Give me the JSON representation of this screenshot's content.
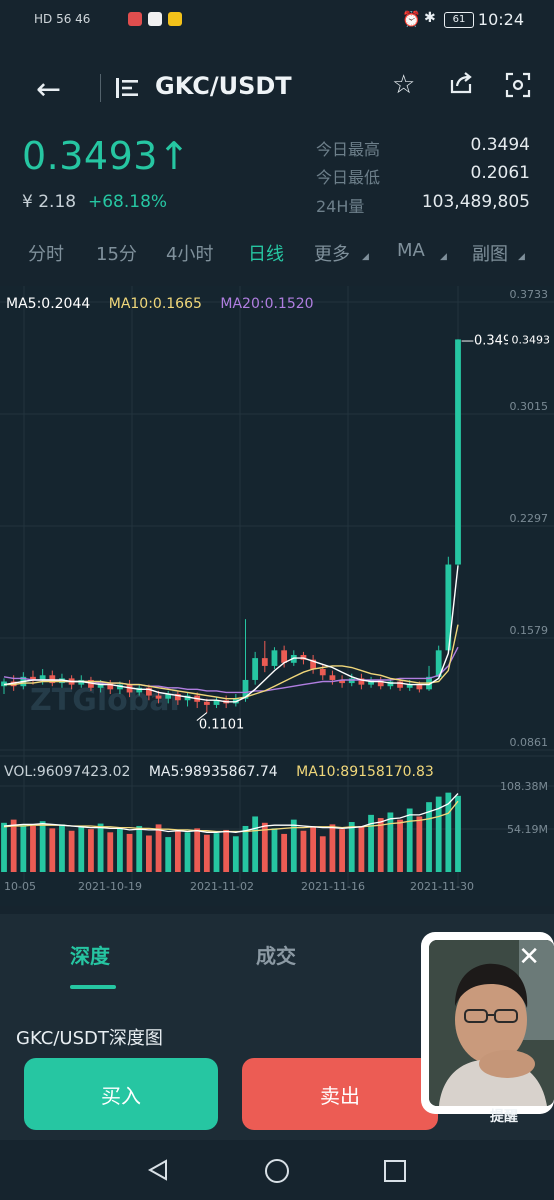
{
  "status_bar": {
    "left": "HD 56 46",
    "battery": "61",
    "time": "10:24"
  },
  "header": {
    "title": "GKC/USDT"
  },
  "price": {
    "last": "0.3493↑",
    "cny": "¥ 2.18",
    "change": "+68.18%"
  },
  "stats": [
    {
      "label": "今日最高",
      "value": "0.3494"
    },
    {
      "label": "今日最低",
      "value": "0.2061"
    },
    {
      "label": "24H量",
      "value": "103,489,805"
    }
  ],
  "tabs": [
    {
      "label": "分时"
    },
    {
      "label": "15分"
    },
    {
      "label": "4小时"
    },
    {
      "label": "日线",
      "active": true
    },
    {
      "label": "更多"
    },
    {
      "label": "MA"
    },
    {
      "label": "副图"
    }
  ],
  "chart_data": {
    "type": "candlestick",
    "ma": [
      {
        "label": "MA5:0.2044",
        "color": "#ffffff"
      },
      {
        "label": "MA10:0.1665",
        "color": "#f0d77a"
      },
      {
        "label": "MA20:0.1520",
        "color": "#b07ee0"
      }
    ],
    "y_ticks": [
      "0.3733",
      "0.3015",
      "0.2297",
      "0.1579",
      "0.0861"
    ],
    "ylim": [
      0.0861,
      0.3733
    ],
    "high_label": "0.3494",
    "last_label": "0.3493",
    "low_label": "0.1101",
    "watermark": "ZTGlobal",
    "candles": [
      [
        0.127,
        0.13,
        0.122,
        0.132
      ],
      [
        0.13,
        0.127,
        0.124,
        0.134
      ],
      [
        0.127,
        0.133,
        0.125,
        0.136
      ],
      [
        0.133,
        0.131,
        0.128,
        0.137
      ],
      [
        0.131,
        0.134,
        0.128,
        0.138
      ],
      [
        0.134,
        0.129,
        0.127,
        0.137
      ],
      [
        0.129,
        0.132,
        0.126,
        0.135
      ],
      [
        0.132,
        0.128,
        0.125,
        0.134
      ],
      [
        0.128,
        0.131,
        0.126,
        0.134
      ],
      [
        0.131,
        0.126,
        0.124,
        0.133
      ],
      [
        0.126,
        0.129,
        0.123,
        0.131
      ],
      [
        0.129,
        0.125,
        0.122,
        0.131
      ],
      [
        0.125,
        0.128,
        0.122,
        0.13
      ],
      [
        0.128,
        0.123,
        0.12,
        0.131
      ],
      [
        0.123,
        0.126,
        0.121,
        0.128
      ],
      [
        0.126,
        0.121,
        0.118,
        0.128
      ],
      [
        0.121,
        0.119,
        0.116,
        0.124
      ],
      [
        0.119,
        0.122,
        0.116,
        0.124
      ],
      [
        0.122,
        0.118,
        0.115,
        0.124
      ],
      [
        0.118,
        0.121,
        0.114,
        0.123
      ],
      [
        0.121,
        0.117,
        0.113,
        0.123
      ],
      [
        0.117,
        0.115,
        0.1101,
        0.119
      ],
      [
        0.115,
        0.118,
        0.113,
        0.12
      ],
      [
        0.118,
        0.116,
        0.113,
        0.121
      ],
      [
        0.116,
        0.119,
        0.114,
        0.122
      ],
      [
        0.119,
        0.131,
        0.117,
        0.17
      ],
      [
        0.131,
        0.145,
        0.128,
        0.149
      ],
      [
        0.145,
        0.14,
        0.136,
        0.156
      ],
      [
        0.14,
        0.15,
        0.138,
        0.152
      ],
      [
        0.15,
        0.142,
        0.139,
        0.153
      ],
      [
        0.142,
        0.147,
        0.14,
        0.15
      ],
      [
        0.147,
        0.144,
        0.141,
        0.149
      ],
      [
        0.144,
        0.138,
        0.135,
        0.147
      ],
      [
        0.138,
        0.134,
        0.131,
        0.141
      ],
      [
        0.134,
        0.131,
        0.128,
        0.137
      ],
      [
        0.131,
        0.129,
        0.126,
        0.134
      ],
      [
        0.129,
        0.132,
        0.127,
        0.135
      ],
      [
        0.132,
        0.128,
        0.125,
        0.135
      ],
      [
        0.128,
        0.131,
        0.126,
        0.133
      ],
      [
        0.131,
        0.127,
        0.125,
        0.133
      ],
      [
        0.127,
        0.13,
        0.125,
        0.132
      ],
      [
        0.13,
        0.126,
        0.124,
        0.132
      ],
      [
        0.126,
        0.128,
        0.124,
        0.131
      ],
      [
        0.128,
        0.125,
        0.123,
        0.13
      ],
      [
        0.125,
        0.133,
        0.124,
        0.14
      ],
      [
        0.133,
        0.15,
        0.132,
        0.153
      ],
      [
        0.15,
        0.205,
        0.148,
        0.21
      ],
      [
        0.205,
        0.3493,
        0.203,
        0.3494
      ]
    ],
    "ma5": [
      0.128,
      0.129,
      0.13,
      0.131,
      0.131,
      0.131,
      0.131,
      0.13,
      0.13,
      0.129,
      0.128,
      0.128,
      0.127,
      0.126,
      0.125,
      0.125,
      0.123,
      0.122,
      0.121,
      0.12,
      0.119,
      0.118,
      0.118,
      0.117,
      0.117,
      0.12,
      0.125,
      0.131,
      0.137,
      0.142,
      0.145,
      0.145,
      0.143,
      0.141,
      0.139,
      0.136,
      0.133,
      0.131,
      0.13,
      0.13,
      0.129,
      0.129,
      0.128,
      0.128,
      0.128,
      0.132,
      0.148,
      0.2044
    ],
    "ma10": [
      0.128,
      0.128,
      0.129,
      0.129,
      0.13,
      0.13,
      0.13,
      0.13,
      0.13,
      0.13,
      0.13,
      0.129,
      0.129,
      0.128,
      0.128,
      0.127,
      0.126,
      0.125,
      0.124,
      0.123,
      0.122,
      0.121,
      0.12,
      0.119,
      0.119,
      0.12,
      0.122,
      0.124,
      0.127,
      0.13,
      0.133,
      0.136,
      0.138,
      0.139,
      0.14,
      0.14,
      0.139,
      0.137,
      0.135,
      0.134,
      0.132,
      0.131,
      0.13,
      0.129,
      0.129,
      0.13,
      0.137,
      0.1665
    ],
    "ma20": [
      0.133,
      0.132,
      0.132,
      0.131,
      0.131,
      0.131,
      0.13,
      0.13,
      0.13,
      0.13,
      0.129,
      0.129,
      0.129,
      0.128,
      0.128,
      0.127,
      0.127,
      0.126,
      0.126,
      0.125,
      0.125,
      0.124,
      0.124,
      0.123,
      0.123,
      0.123,
      0.124,
      0.124,
      0.125,
      0.126,
      0.127,
      0.128,
      0.129,
      0.13,
      0.13,
      0.131,
      0.131,
      0.131,
      0.131,
      0.131,
      0.131,
      0.132,
      0.132,
      0.132,
      0.132,
      0.134,
      0.14,
      0.152
    ],
    "volume": {
      "vol_label": "VOL:96097423.02",
      "ma5_label": "MA5:98935867.74",
      "ma10_label": "MA10:89158170.83",
      "ticks": [
        "108.38M",
        "54.19M"
      ],
      "max": 108.38,
      "values": [
        62,
        66,
        60,
        58,
        64,
        55,
        60,
        52,
        57,
        54,
        61,
        50,
        56,
        48,
        58,
        46,
        60,
        44,
        52,
        50,
        55,
        47,
        49,
        53,
        45,
        58,
        70,
        62,
        55,
        48,
        66,
        52,
        57,
        45,
        60,
        54,
        63,
        58,
        72,
        68,
        75,
        66,
        80,
        70,
        88,
        95,
        100,
        96
      ],
      "ma5": [
        58,
        59,
        60,
        60,
        61,
        60,
        59,
        58,
        57,
        56,
        56,
        55,
        55,
        53,
        54,
        53,
        53,
        51,
        52,
        51,
        52,
        50,
        50,
        51,
        50,
        52,
        55,
        58,
        59,
        59,
        59,
        58,
        57,
        56,
        56,
        55,
        56,
        57,
        61,
        63,
        67,
        68,
        72,
        72,
        76,
        80,
        86,
        98.9
      ],
      "ma10": [
        57,
        58,
        58,
        59,
        59,
        59,
        59,
        58,
        58,
        58,
        57,
        57,
        56,
        56,
        55,
        55,
        54,
        54,
        53,
        53,
        52,
        52,
        51,
        51,
        51,
        51,
        52,
        53,
        54,
        55,
        56,
        56,
        57,
        57,
        57,
        56,
        57,
        57,
        58,
        59,
        61,
        62,
        64,
        65,
        67,
        70,
        74,
        89.2
      ]
    },
    "x_ticks": [
      "10-05",
      "2021-10-19",
      "2021-11-02",
      "2021-11-16",
      "2021-11-30"
    ]
  },
  "lower_panel": {
    "depth_tab": "深度",
    "trades_tab": "成交",
    "depth_title": "GKC/USDT深度图",
    "buy": "买入",
    "sell": "卖出"
  },
  "video_overlay": {
    "remind_label": "提醒"
  }
}
